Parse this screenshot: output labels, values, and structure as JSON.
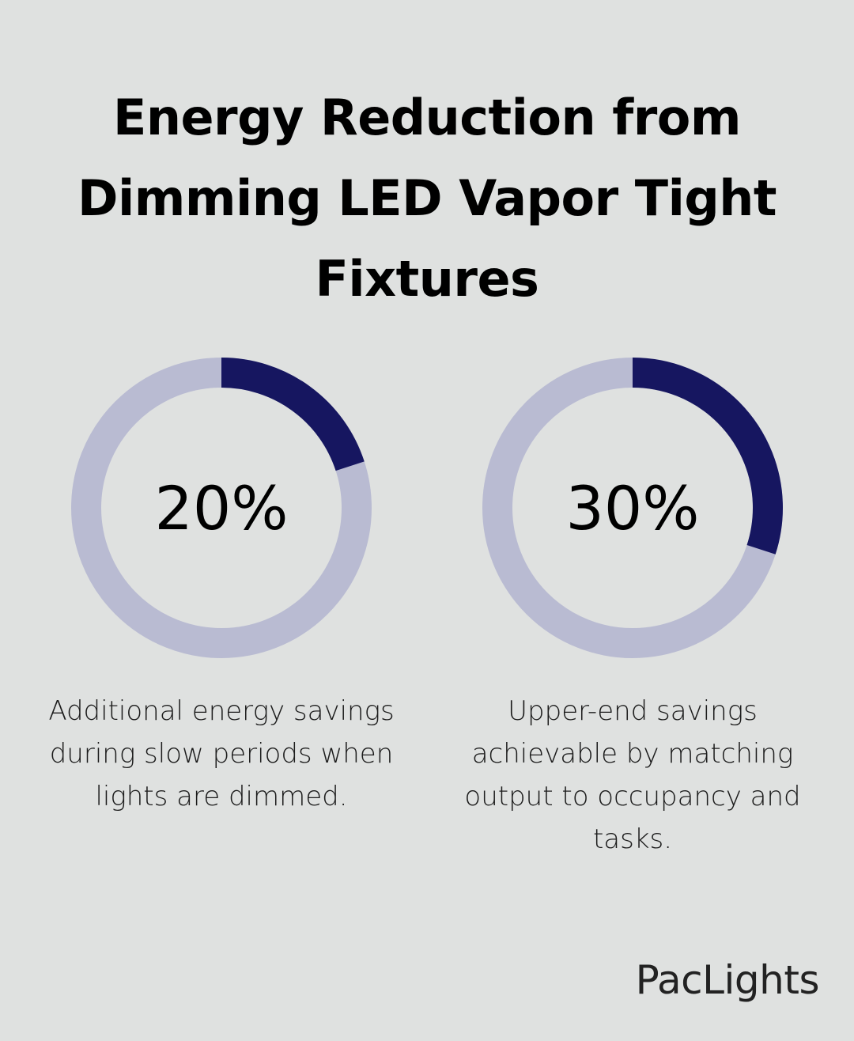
{
  "title": "Energy Reduction from Dimming LED Vapor Tight Fixtures",
  "brand": "PacLights",
  "colors": {
    "background": "#dfe1e0",
    "track": "#b9bbd2",
    "accent": "#161660"
  },
  "chart_data": [
    {
      "type": "pie",
      "style": "donut",
      "value": 20,
      "unit": "%",
      "label": "20%",
      "description": "Additional energy savings during slow periods when lights are dimmed."
    },
    {
      "type": "pie",
      "style": "donut",
      "value": 30,
      "unit": "%",
      "label": "30%",
      "description": "Upper-end savings achievable by matching output to occupancy and tasks."
    }
  ]
}
